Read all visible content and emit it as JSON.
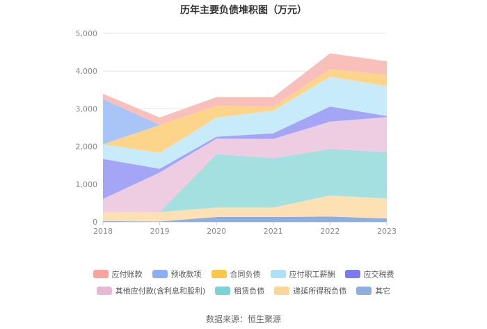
{
  "chart_data": {
    "type": "area",
    "stacked": true,
    "title": "历年主要负债堆积图（万元）",
    "x": [
      "2018",
      "2019",
      "2020",
      "2021",
      "2022",
      "2023"
    ],
    "ylim": [
      0,
      5000
    ],
    "yticks": [
      "0",
      "1,000",
      "2,000",
      "3,000",
      "4,000",
      "5,000"
    ],
    "grid": "horizontal",
    "legend_position": "bottom",
    "series": [
      {
        "name": "其它",
        "color": "#8eaee0",
        "values": [
          20,
          10,
          130,
          130,
          140,
          90
        ]
      },
      {
        "name": "递延所得税负债",
        "color": "#fde0b4",
        "values": [
          240,
          250,
          250,
          250,
          560,
          530
        ]
      },
      {
        "name": "租赁负债",
        "color": "#a5e0e0",
        "values": [
          0,
          0,
          1420,
          1310,
          1230,
          1230
        ]
      },
      {
        "name": "其他应付款(含利息和股利)",
        "color": "#eecde3",
        "values": [
          350,
          1050,
          410,
          510,
          730,
          930
        ]
      },
      {
        "name": "应交税费",
        "color": "#a5a5f5",
        "values": [
          1060,
          100,
          50,
          150,
          400,
          30
        ]
      },
      {
        "name": "应付职工薪酬",
        "color": "#c8ebfa",
        "values": [
          390,
          420,
          510,
          600,
          790,
          790
        ]
      },
      {
        "name": "合同负债",
        "color": "#fdd58a",
        "values": [
          0,
          740,
          310,
          110,
          200,
          300
        ]
      },
      {
        "name": "预收款项",
        "color": "#a9c4f7",
        "values": [
          1200,
          0,
          0,
          0,
          0,
          0
        ]
      },
      {
        "name": "应付账款",
        "color": "#f9c0bb",
        "values": [
          140,
          200,
          230,
          250,
          420,
          360
        ]
      }
    ]
  },
  "legend": {
    "row1": [
      {
        "name": "应付账款",
        "color": "#f7a59e"
      },
      {
        "name": "预收款项",
        "color": "#8caef5"
      },
      {
        "name": "合同负债",
        "color": "#fcc64a"
      },
      {
        "name": "应付职工薪酬",
        "color": "#aee0fa"
      },
      {
        "name": "应交税费",
        "color": "#7b7bef"
      }
    ],
    "row2": [
      {
        "name": "其他应付款(含利息和股利)",
        "color": "#e5b8d6"
      },
      {
        "name": "租赁负债",
        "color": "#7dd3d3"
      },
      {
        "name": "递延所得税负债",
        "color": "#fcd59a"
      },
      {
        "name": "其它",
        "color": "#8eaee0"
      }
    ]
  },
  "source": "数据来源：恒生聚源"
}
